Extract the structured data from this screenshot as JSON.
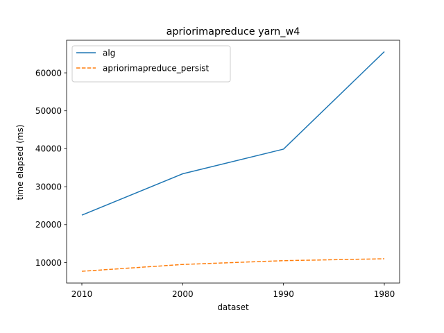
{
  "chart_data": {
    "type": "line",
    "title": "apriorimapreduce yarn_w4",
    "xlabel": "dataset",
    "ylabel": "time elapsed (ms)",
    "categories": [
      "2010",
      "2000",
      "1990",
      "1980"
    ],
    "yticks": [
      10000,
      20000,
      30000,
      40000,
      50000,
      60000
    ],
    "ylim": [
      4600,
      68600
    ],
    "series": [
      {
        "name": "alg",
        "values": [
          22500,
          33400,
          39900,
          65600
        ],
        "color": "#1f77b4",
        "style": "solid"
      },
      {
        "name": "apriorimapreduce_persist",
        "values": [
          7700,
          9500,
          10500,
          11000
        ],
        "color": "#ff7f0e",
        "style": "dashed"
      }
    ],
    "legend": "top-left",
    "grid": false
  }
}
